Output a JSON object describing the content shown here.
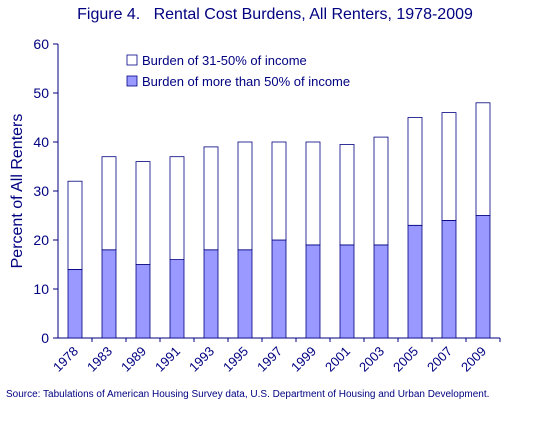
{
  "title": "Figure 4.   Rental Cost Burdens, All Renters, 1978-2009",
  "source": "Source:  Tabulations of American Housing Survey data, U.S. Department of Housing and Urban Development.",
  "colors": {
    "text": "#000080",
    "severe_fill": "#9999ff",
    "moderate_fill": "#ffffff",
    "bar_stroke": "#000080"
  },
  "chart_data": {
    "type": "bar",
    "stacked": true,
    "title": "Figure 4.   Rental Cost Burdens, All Renters, 1978-2009",
    "xlabel": "",
    "ylabel": "Percent of All Renters",
    "ylim": [
      0,
      60
    ],
    "yticks": [
      0,
      10,
      20,
      30,
      40,
      50,
      60
    ],
    "grid": false,
    "legend_position": "top-center",
    "categories": [
      "1978",
      "1983",
      "1989",
      "1991",
      "1993",
      "1995",
      "1997",
      "1999",
      "2001",
      "2003",
      "2005",
      "2007",
      "2009"
    ],
    "series": [
      {
        "name": "Burden of more than 50% of income",
        "color": "#9999ff",
        "values": [
          14,
          18,
          15,
          16,
          18,
          18,
          20,
          19,
          19,
          19,
          23,
          24,
          25
        ]
      },
      {
        "name": "Burden of 31-50% of income",
        "color": "#ffffff",
        "values": [
          18,
          19,
          21,
          21,
          21,
          22,
          20,
          21,
          20.5,
          22,
          22,
          22,
          23
        ]
      }
    ]
  }
}
